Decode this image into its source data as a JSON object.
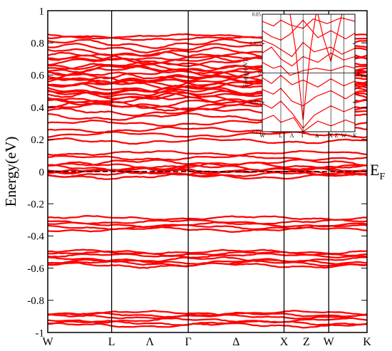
{
  "chart_data": [
    {
      "type": "line",
      "title": "",
      "xlabel": "",
      "ylabel": "Energy(eV)",
      "ylim": [
        -1,
        1
      ],
      "y_ticks": [
        -1,
        -0.8,
        -0.6,
        -0.4,
        -0.2,
        0,
        0.2,
        0.4,
        0.6,
        0.8,
        1
      ],
      "y_tick_labels": [
        "-1",
        "-0.8",
        "-0.6",
        "-0.4",
        "-0.2",
        "0",
        "0.2",
        "0.4",
        "0.6",
        "0.8",
        "1"
      ],
      "k_path": [
        {
          "label": "W",
          "position": 0.0
        },
        {
          "label": "L",
          "position": 0.2
        },
        {
          "label": "Λ",
          "position": 0.32
        },
        {
          "label": "Γ",
          "position": 0.44
        },
        {
          "label": "Δ",
          "position": 0.59
        },
        {
          "label": "X",
          "position": 0.74
        },
        {
          "label": "Z",
          "position": 0.81
        },
        {
          "label": "W",
          "position": 0.88
        },
        {
          "label": "K",
          "position": 1.0
        }
      ],
      "k_vertical_lines_at": [
        0.2,
        0.44,
        0.74,
        0.88
      ],
      "fermi_level": {
        "value": 0,
        "label": "E",
        "sub": "F",
        "style": "dashed"
      },
      "band_color": "#ff0000",
      "band_groups": [
        {
          "center": 0.835,
          "count": 2,
          "spread": 0.008
        },
        {
          "center": 0.755,
          "count": 4,
          "spread": 0.04
        },
        {
          "center": 0.68,
          "count": 5,
          "spread": 0.035
        },
        {
          "center": 0.6,
          "count": 6,
          "spread": 0.04
        },
        {
          "center": 0.53,
          "count": 6,
          "spread": 0.04
        },
        {
          "center": 0.45,
          "count": 6,
          "spread": 0.04
        },
        {
          "center": 0.37,
          "count": 3,
          "spread": 0.03
        },
        {
          "center": 0.28,
          "count": 2,
          "spread": 0.02
        },
        {
          "center": 0.21,
          "count": 2,
          "spread": 0.02
        },
        {
          "center": 0.1,
          "count": 2,
          "spread": 0.015
        },
        {
          "center": 0.03,
          "count": 4,
          "spread": 0.025
        },
        {
          "center": -0.01,
          "count": 4,
          "spread": 0.02
        },
        {
          "center": -0.3,
          "count": 2,
          "spread": 0.012
        },
        {
          "center": -0.345,
          "count": 3,
          "spread": 0.015
        },
        {
          "center": -0.51,
          "count": 3,
          "spread": 0.012
        },
        {
          "center": -0.565,
          "count": 4,
          "spread": 0.018
        },
        {
          "center": -0.89,
          "count": 3,
          "spread": 0.012
        },
        {
          "center": -0.94,
          "count": 3,
          "spread": 0.015
        }
      ]
    },
    {
      "type": "line",
      "title": "",
      "xlabel": "",
      "ylabel": "Energy(eV)",
      "ylim": [
        -0.05,
        0.05
      ],
      "y_ticks": [
        -0.05,
        -0.025,
        0,
        0.025,
        0.05
      ],
      "y_tick_labels": [
        "-0.05",
        "-0.025",
        "0",
        "0.025",
        "0.05"
      ],
      "k_path": [
        {
          "label": "W",
          "position": 0.0
        },
        {
          "label": "L",
          "position": 0.2
        },
        {
          "label": "Λ",
          "position": 0.32
        },
        {
          "label": "Γ",
          "position": 0.44
        },
        {
          "label": "Δ",
          "position": 0.59
        },
        {
          "label": "X",
          "position": 0.74
        },
        {
          "label": "Z",
          "position": 0.8
        },
        {
          "label": "W",
          "position": 0.88
        },
        {
          "label": "K",
          "position": 1.0
        }
      ],
      "k_vertical_lines_at": [
        0.2,
        0.44,
        0.74,
        0.88
      ],
      "fermi_level": {
        "value": 0,
        "label": "E",
        "sub": "F",
        "style": "solid"
      },
      "band_color": "#ff0000",
      "inset_bands": [
        {
          "pts": [
            [
              0,
              0.044
            ],
            [
              0.12,
              0.04
            ],
            [
              0.2,
              0.045
            ],
            [
              0.3,
              0.041
            ],
            [
              0.44,
              0.038
            ],
            [
              0.55,
              0.046
            ],
            [
              0.7,
              0.042
            ],
            [
              0.85,
              0.047
            ],
            [
              1.0,
              0.044
            ]
          ]
        },
        {
          "pts": [
            [
              0,
              0.036
            ],
            [
              0.1,
              0.031
            ],
            [
              0.2,
              0.028
            ],
            [
              0.3,
              0.033
            ],
            [
              0.44,
              0.045
            ],
            [
              0.6,
              0.03
            ],
            [
              0.74,
              0.036
            ],
            [
              0.9,
              0.029
            ],
            [
              1.0,
              0.034
            ]
          ]
        },
        {
          "pts": [
            [
              0,
              0.028
            ],
            [
              0.12,
              0.024
            ],
            [
              0.2,
              0.02
            ],
            [
              0.32,
              0.014
            ],
            [
              0.44,
              0.026
            ],
            [
              0.56,
              0.018
            ],
            [
              0.74,
              0.022
            ],
            [
              0.86,
              0.016
            ],
            [
              1.0,
              0.021
            ]
          ]
        },
        {
          "pts": [
            [
              0,
              0.017
            ],
            [
              0.1,
              0.022
            ],
            [
              0.2,
              0.012
            ],
            [
              0.32,
              0.006
            ],
            [
              0.44,
              0.014
            ],
            [
              0.6,
              0.009
            ],
            [
              0.74,
              0.017
            ],
            [
              0.88,
              0.011
            ],
            [
              1.0,
              0.014
            ]
          ]
        },
        {
          "pts": [
            [
              0,
              0.009
            ],
            [
              0.12,
              0.004
            ],
            [
              0.2,
              0.006
            ],
            [
              0.3,
              -0.002
            ],
            [
              0.44,
              0.002
            ],
            [
              0.58,
              0.004
            ],
            [
              0.74,
              0.002
            ],
            [
              0.9,
              0.006
            ],
            [
              1.0,
              0.004
            ]
          ]
        },
        {
          "pts": [
            [
              0,
              -0.004
            ],
            [
              0.1,
              -0.009
            ],
            [
              0.2,
              -0.002
            ],
            [
              0.32,
              -0.01
            ],
            [
              0.44,
              -0.006
            ],
            [
              0.6,
              -0.012
            ],
            [
              0.74,
              -0.005
            ],
            [
              0.88,
              -0.011
            ],
            [
              1.0,
              -0.007
            ]
          ]
        },
        {
          "pts": [
            [
              0,
              -0.014
            ],
            [
              0.12,
              -0.018
            ],
            [
              0.2,
              -0.013
            ],
            [
              0.32,
              -0.024
            ],
            [
              0.44,
              -0.028
            ],
            [
              0.58,
              -0.02
            ],
            [
              0.74,
              -0.015
            ],
            [
              0.9,
              -0.022
            ],
            [
              1.0,
              -0.017
            ]
          ]
        },
        {
          "pts": [
            [
              0,
              -0.026
            ],
            [
              0.1,
              -0.03
            ],
            [
              0.2,
              -0.024
            ],
            [
              0.32,
              -0.034
            ],
            [
              0.44,
              -0.047
            ],
            [
              0.56,
              -0.036
            ],
            [
              0.74,
              -0.028
            ],
            [
              0.88,
              -0.033
            ],
            [
              1.0,
              -0.029
            ]
          ]
        },
        {
          "pts": [
            [
              0,
              -0.04
            ],
            [
              0.12,
              -0.036
            ],
            [
              0.2,
              -0.042
            ],
            [
              0.34,
              -0.038
            ],
            [
              0.44,
              -0.05
            ],
            [
              0.6,
              -0.041
            ],
            [
              0.74,
              -0.045
            ],
            [
              0.9,
              -0.04
            ],
            [
              1.0,
              -0.043
            ]
          ]
        },
        {
          "pts": [
            [
              0.3,
              0.05
            ],
            [
              0.36,
              0.02
            ],
            [
              0.4,
              -0.01
            ],
            [
              0.44,
              -0.04
            ],
            [
              0.48,
              -0.01
            ],
            [
              0.52,
              0.02
            ],
            [
              0.58,
              0.05
            ]
          ]
        },
        {
          "pts": [
            [
              0.6,
              0.05
            ],
            [
              0.66,
              0.03
            ],
            [
              0.74,
              0.01
            ],
            [
              0.8,
              0.03
            ],
            [
              0.86,
              0.05
            ]
          ]
        }
      ]
    }
  ]
}
